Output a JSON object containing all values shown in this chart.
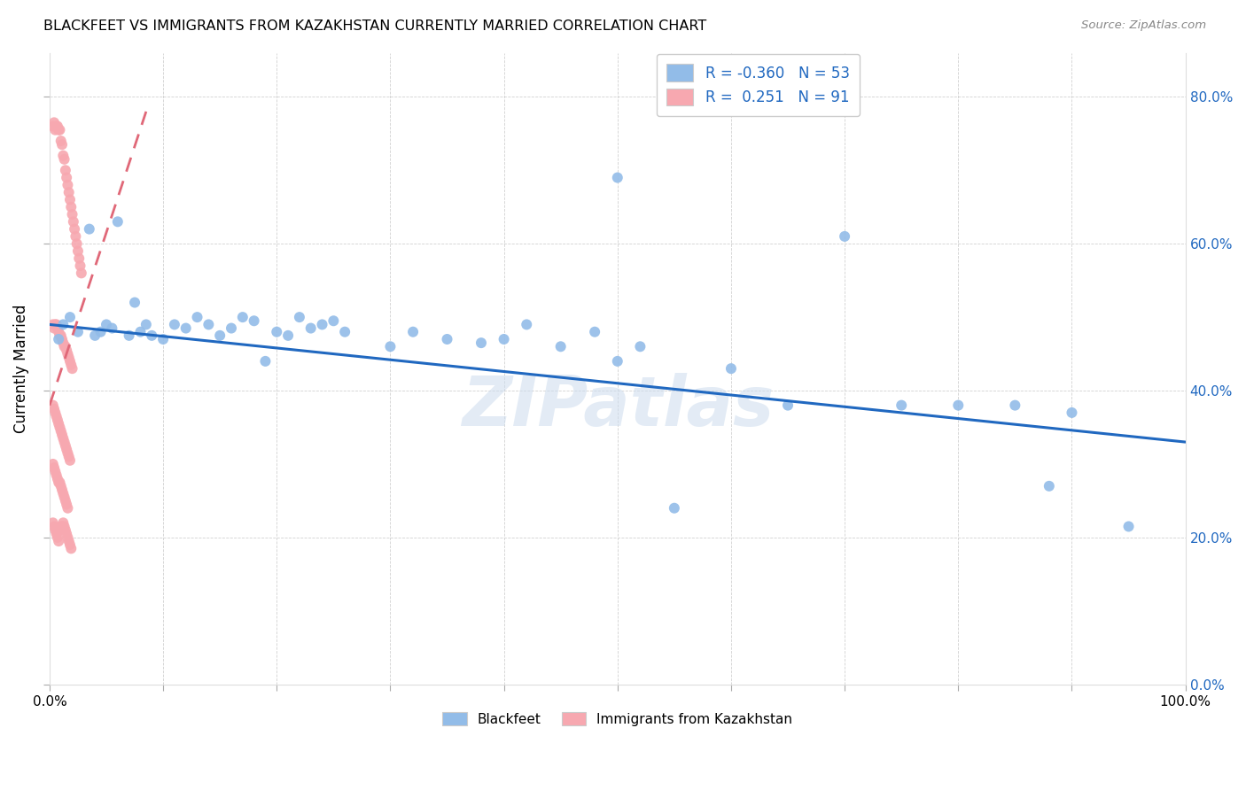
{
  "title": "BLACKFEET VS IMMIGRANTS FROM KAZAKHSTAN CURRENTLY MARRIED CORRELATION CHART",
  "source": "Source: ZipAtlas.com",
  "ylabel": "Currently Married",
  "legend_blue_label": "Blackfeet",
  "legend_pink_label": "Immigrants from Kazakhstan",
  "R_blue": -0.36,
  "N_blue": 53,
  "R_pink": 0.251,
  "N_pink": 91,
  "blue_color": "#92bce8",
  "pink_color": "#f7a8b0",
  "blue_line_color": "#2068c0",
  "pink_line_color": "#e06878",
  "watermark": "ZIPatlas",
  "blue_scatter_x": [
    0.008,
    0.012,
    0.018,
    0.025,
    0.035,
    0.04,
    0.045,
    0.05,
    0.055,
    0.06,
    0.07,
    0.075,
    0.08,
    0.085,
    0.09,
    0.1,
    0.11,
    0.12,
    0.13,
    0.14,
    0.15,
    0.16,
    0.17,
    0.18,
    0.19,
    0.2,
    0.21,
    0.22,
    0.23,
    0.24,
    0.25,
    0.26,
    0.3,
    0.32,
    0.35,
    0.38,
    0.4,
    0.42,
    0.45,
    0.48,
    0.5,
    0.52,
    0.55,
    0.6,
    0.65,
    0.7,
    0.75,
    0.8,
    0.85,
    0.88,
    0.9,
    0.95,
    0.5
  ],
  "blue_scatter_y": [
    0.47,
    0.49,
    0.5,
    0.48,
    0.62,
    0.475,
    0.48,
    0.49,
    0.485,
    0.63,
    0.475,
    0.52,
    0.48,
    0.49,
    0.475,
    0.47,
    0.49,
    0.485,
    0.5,
    0.49,
    0.475,
    0.485,
    0.5,
    0.495,
    0.44,
    0.48,
    0.475,
    0.5,
    0.485,
    0.49,
    0.495,
    0.48,
    0.46,
    0.48,
    0.47,
    0.465,
    0.47,
    0.49,
    0.46,
    0.48,
    0.44,
    0.46,
    0.24,
    0.43,
    0.38,
    0.61,
    0.38,
    0.38,
    0.38,
    0.27,
    0.37,
    0.215,
    0.69
  ],
  "pink_scatter_x": [
    0.003,
    0.004,
    0.005,
    0.006,
    0.007,
    0.008,
    0.009,
    0.01,
    0.011,
    0.012,
    0.013,
    0.014,
    0.015,
    0.016,
    0.017,
    0.018,
    0.019,
    0.02,
    0.021,
    0.022,
    0.023,
    0.024,
    0.025,
    0.026,
    0.027,
    0.028,
    0.003,
    0.004,
    0.005,
    0.006,
    0.007,
    0.008,
    0.009,
    0.01,
    0.011,
    0.012,
    0.013,
    0.014,
    0.015,
    0.016,
    0.017,
    0.018,
    0.019,
    0.02,
    0.003,
    0.004,
    0.005,
    0.006,
    0.007,
    0.008,
    0.009,
    0.01,
    0.011,
    0.012,
    0.013,
    0.014,
    0.015,
    0.016,
    0.017,
    0.018,
    0.003,
    0.004,
    0.005,
    0.006,
    0.007,
    0.008,
    0.009,
    0.01,
    0.011,
    0.012,
    0.013,
    0.014,
    0.015,
    0.016,
    0.003,
    0.004,
    0.005,
    0.006,
    0.007,
    0.008,
    0.009,
    0.01,
    0.011,
    0.012,
    0.013,
    0.014,
    0.015,
    0.016,
    0.017,
    0.018,
    0.019
  ],
  "pink_scatter_y": [
    0.76,
    0.765,
    0.755,
    0.76,
    0.76,
    0.755,
    0.755,
    0.74,
    0.735,
    0.72,
    0.715,
    0.7,
    0.69,
    0.68,
    0.67,
    0.66,
    0.65,
    0.64,
    0.63,
    0.62,
    0.61,
    0.6,
    0.59,
    0.58,
    0.57,
    0.56,
    0.49,
    0.485,
    0.49,
    0.49,
    0.485,
    0.48,
    0.475,
    0.475,
    0.47,
    0.465,
    0.46,
    0.46,
    0.455,
    0.45,
    0.445,
    0.44,
    0.435,
    0.43,
    0.38,
    0.375,
    0.37,
    0.365,
    0.36,
    0.355,
    0.35,
    0.345,
    0.34,
    0.335,
    0.33,
    0.325,
    0.32,
    0.315,
    0.31,
    0.305,
    0.3,
    0.295,
    0.29,
    0.285,
    0.28,
    0.275,
    0.275,
    0.27,
    0.265,
    0.26,
    0.255,
    0.25,
    0.245,
    0.24,
    0.22,
    0.215,
    0.21,
    0.205,
    0.2,
    0.195,
    0.21,
    0.215,
    0.215,
    0.22,
    0.215,
    0.21,
    0.205,
    0.2,
    0.195,
    0.19,
    0.185
  ],
  "blue_line_x0": 0.0,
  "blue_line_x1": 1.0,
  "blue_line_y0": 0.49,
  "blue_line_y1": 0.33,
  "pink_line_x0": 0.0,
  "pink_line_x1": 0.085,
  "pink_line_y0": 0.38,
  "pink_line_y1": 0.78,
  "xlim": [
    0.0,
    1.0
  ],
  "ylim": [
    0.0,
    0.86
  ],
  "yticks": [
    0.0,
    0.2,
    0.4,
    0.6,
    0.8
  ],
  "ytick_labels_right": [
    "0.0%",
    "20.0%",
    "40.0%",
    "60.0%",
    "80.0%"
  ],
  "xticks": [
    0.0,
    0.1,
    0.2,
    0.3,
    0.4,
    0.5,
    0.6,
    0.7,
    0.8,
    0.9,
    1.0
  ],
  "xtick_labels": [
    "0.0%",
    "",
    "",
    "",
    "",
    "",
    "",
    "",
    "",
    "",
    "100.0%"
  ]
}
